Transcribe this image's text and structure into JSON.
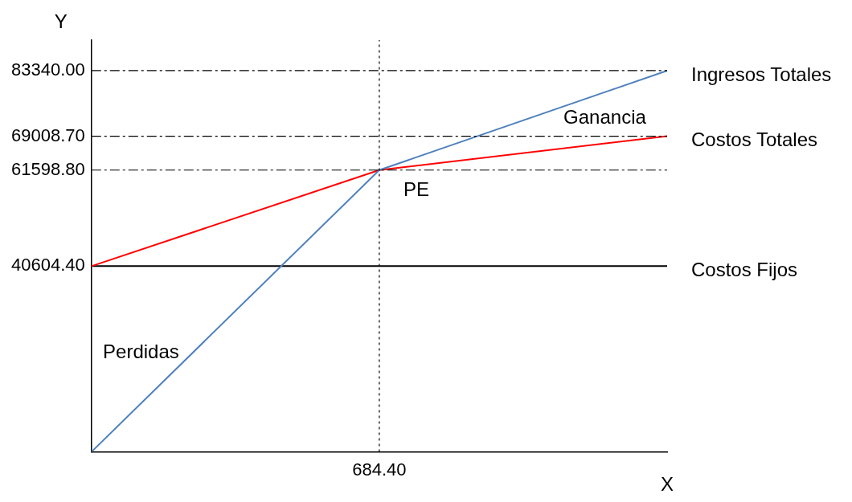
{
  "chart_data": {
    "type": "line",
    "xlabel": "X",
    "ylabel": "Y",
    "categories": [
      null,
      "684.40",
      null
    ],
    "ylim": [
      0,
      90000
    ],
    "yticks": [
      {
        "value": 40604.4,
        "label": "40604.40"
      },
      {
        "value": 61598.8,
        "label": "61598.80"
      },
      {
        "value": 69008.7,
        "label": "69008.70"
      },
      {
        "value": 83340,
        "label": "83340.00"
      }
    ],
    "series": [
      {
        "name": "Ingresos Totales",
        "color": "#4f81bd",
        "values": [
          0,
          61598.8,
          83340
        ]
      },
      {
        "name": "Costos Totales",
        "color": "#ff0000",
        "values": [
          40604.4,
          61598.8,
          69008.7
        ]
      },
      {
        "name": "Costos Fijos",
        "color": "#000000",
        "values": [
          40604.4,
          40604.4,
          40604.4
        ]
      }
    ],
    "ref_lines": [
      {
        "axis": "y",
        "value": 83340,
        "line_style": "dashed"
      },
      {
        "axis": "y",
        "value": 69008.7,
        "line_style": "dashed"
      },
      {
        "axis": "y",
        "value": 61598.8,
        "line_style": "dashed"
      },
      {
        "axis": "x",
        "value": "684.40",
        "line_style": "dotted"
      }
    ],
    "annotations": [
      "Ganancia",
      {
        "text": "PE",
        "x": "684.40",
        "y": 61598.8
      },
      "Perdidas"
    ],
    "marker": "none",
    "line_style": "solid",
    "grid": false,
    "legend": false
  }
}
